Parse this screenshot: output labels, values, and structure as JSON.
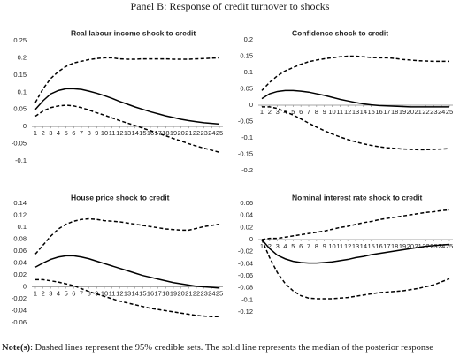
{
  "header": {
    "title": "Panel B: Response of credit turnover to shocks"
  },
  "note": {
    "label": "Note(s)",
    "text": ": Dashed lines represent the 95% credible sets. The solid line represents the median of the posterior response"
  },
  "chart_data": [
    {
      "type": "line",
      "title": "Real labour income shock to credit",
      "x": [
        1,
        2,
        3,
        4,
        5,
        6,
        7,
        8,
        9,
        10,
        11,
        12,
        13,
        14,
        15,
        16,
        17,
        18,
        19,
        20,
        21,
        22,
        23,
        24,
        25
      ],
      "xlim": [
        1,
        25
      ],
      "xticks": [
        1,
        2,
        3,
        4,
        5,
        6,
        7,
        8,
        9,
        10,
        11,
        12,
        13,
        14,
        15,
        16,
        17,
        18,
        19,
        20,
        21,
        22,
        23,
        24,
        25
      ],
      "ylim": [
        -0.1,
        0.25
      ],
      "yticks": [
        -0.1,
        -0.05,
        0,
        0.05,
        0.1,
        0.15,
        0.2,
        0.25
      ],
      "grid": false,
      "series": [
        {
          "color": "#000000",
          "dashed": true,
          "values": [
            0.07,
            0.11,
            0.14,
            0.16,
            0.175,
            0.185,
            0.19,
            0.195,
            0.198,
            0.2,
            0.2,
            0.197,
            0.196,
            0.196,
            0.197,
            0.197,
            0.197,
            0.197,
            0.196,
            0.196,
            0.196,
            0.197,
            0.198,
            0.199,
            0.2
          ]
        },
        {
          "color": "#000000",
          "dashed": false,
          "values": [
            0.05,
            0.075,
            0.095,
            0.105,
            0.11,
            0.11,
            0.108,
            0.103,
            0.097,
            0.09,
            0.082,
            0.073,
            0.065,
            0.057,
            0.05,
            0.043,
            0.037,
            0.031,
            0.026,
            0.021,
            0.017,
            0.014,
            0.011,
            0.009,
            0.007
          ]
        },
        {
          "color": "#000000",
          "dashed": true,
          "values": [
            0.03,
            0.045,
            0.055,
            0.06,
            0.062,
            0.06,
            0.055,
            0.048,
            0.04,
            0.033,
            0.025,
            0.017,
            0.01,
            0.003,
            -0.005,
            -0.012,
            -0.02,
            -0.027,
            -0.035,
            -0.042,
            -0.05,
            -0.057,
            -0.063,
            -0.069,
            -0.075
          ]
        }
      ]
    },
    {
      "type": "line",
      "title": "Confidence shock to credit",
      "x": [
        1,
        2,
        3,
        4,
        5,
        6,
        7,
        8,
        9,
        10,
        11,
        12,
        13,
        14,
        15,
        16,
        17,
        18,
        19,
        20,
        21,
        22,
        23,
        24,
        25
      ],
      "xlim": [
        1,
        25
      ],
      "xticks": [
        1,
        2,
        3,
        4,
        5,
        6,
        7,
        8,
        9,
        10,
        11,
        12,
        13,
        14,
        15,
        16,
        17,
        18,
        19,
        20,
        21,
        22,
        23,
        24,
        25
      ],
      "ylim": [
        -0.2,
        0.2
      ],
      "yticks": [
        -0.2,
        -0.15,
        -0.1,
        -0.05,
        0,
        0.05,
        0.1,
        0.15,
        0.2
      ],
      "grid": false,
      "series": [
        {
          "color": "#000000",
          "dashed": true,
          "values": [
            0.045,
            0.07,
            0.09,
            0.105,
            0.115,
            0.125,
            0.133,
            0.138,
            0.142,
            0.145,
            0.148,
            0.15,
            0.15,
            0.148,
            0.146,
            0.145,
            0.145,
            0.143,
            0.14,
            0.138,
            0.136,
            0.135,
            0.134,
            0.134,
            0.134
          ]
        },
        {
          "color": "#000000",
          "dashed": false,
          "values": [
            0.02,
            0.035,
            0.042,
            0.045,
            0.045,
            0.043,
            0.04,
            0.035,
            0.03,
            0.024,
            0.018,
            0.013,
            0.008,
            0.004,
            0.001,
            -0.001,
            -0.002,
            -0.003,
            -0.004,
            -0.005,
            -0.005,
            -0.005,
            -0.005,
            -0.005,
            -0.005
          ]
        },
        {
          "color": "#000000",
          "dashed": true,
          "values": [
            -0.005,
            -0.005,
            -0.01,
            -0.02,
            -0.03,
            -0.042,
            -0.055,
            -0.067,
            -0.078,
            -0.088,
            -0.097,
            -0.105,
            -0.112,
            -0.118,
            -0.123,
            -0.127,
            -0.13,
            -0.132,
            -0.134,
            -0.135,
            -0.136,
            -0.136,
            -0.135,
            -0.134,
            -0.133
          ]
        }
      ]
    },
    {
      "type": "line",
      "title": "House price shock to credit",
      "x": [
        1,
        2,
        3,
        4,
        5,
        6,
        7,
        8,
        9,
        10,
        11,
        12,
        13,
        14,
        15,
        16,
        17,
        18,
        19,
        20,
        21,
        22,
        23,
        24,
        25
      ],
      "xlim": [
        1,
        25
      ],
      "xticks": [
        1,
        2,
        3,
        4,
        5,
        6,
        7,
        8,
        9,
        10,
        11,
        12,
        13,
        14,
        15,
        16,
        17,
        18,
        19,
        20,
        21,
        22,
        23,
        24,
        25
      ],
      "ylim": [
        -0.06,
        0.14
      ],
      "yticks": [
        -0.06,
        -0.04,
        -0.02,
        0,
        0.02,
        0.04,
        0.06,
        0.08,
        0.1,
        0.12,
        0.14
      ],
      "grid": false,
      "series": [
        {
          "color": "#000000",
          "dashed": true,
          "values": [
            0.055,
            0.07,
            0.085,
            0.097,
            0.105,
            0.11,
            0.113,
            0.114,
            0.113,
            0.111,
            0.11,
            0.109,
            0.107,
            0.105,
            0.103,
            0.101,
            0.099,
            0.097,
            0.096,
            0.095,
            0.095,
            0.098,
            0.101,
            0.103,
            0.105
          ]
        },
        {
          "color": "#000000",
          "dashed": false,
          "values": [
            0.033,
            0.04,
            0.046,
            0.05,
            0.052,
            0.052,
            0.05,
            0.047,
            0.043,
            0.039,
            0.035,
            0.031,
            0.027,
            0.023,
            0.019,
            0.016,
            0.013,
            0.01,
            0.007,
            0.005,
            0.003,
            0.001,
            0,
            -0.001,
            -0.002
          ]
        },
        {
          "color": "#000000",
          "dashed": true,
          "values": [
            0.012,
            0.012,
            0.01,
            0.008,
            0.005,
            0.002,
            -0.003,
            -0.008,
            -0.012,
            -0.016,
            -0.02,
            -0.024,
            -0.027,
            -0.03,
            -0.033,
            -0.036,
            -0.038,
            -0.04,
            -0.042,
            -0.044,
            -0.046,
            -0.048,
            -0.049,
            -0.05,
            -0.05
          ]
        }
      ]
    },
    {
      "type": "line",
      "title": "Nominal interest rate shock to credit",
      "x": [
        1,
        2,
        3,
        4,
        5,
        6,
        7,
        8,
        9,
        10,
        11,
        12,
        13,
        14,
        15,
        16,
        17,
        18,
        19,
        20,
        21,
        22,
        23,
        24,
        25
      ],
      "xlim": [
        1,
        25
      ],
      "xticks": [
        1,
        2,
        3,
        4,
        5,
        6,
        7,
        8,
        9,
        10,
        11,
        12,
        13,
        14,
        15,
        16,
        17,
        18,
        19,
        20,
        21,
        22,
        23,
        24,
        25
      ],
      "ylim": [
        -0.12,
        0.06
      ],
      "yticks": [
        -0.12,
        -0.1,
        -0.08,
        -0.06,
        -0.04,
        -0.02,
        0,
        0.02,
        0.04,
        0.06
      ],
      "grid": false,
      "series": [
        {
          "color": "#000000",
          "dashed": true,
          "values": [
            0,
            0.002,
            0.002,
            0.004,
            0.006,
            0.008,
            0.01,
            0.012,
            0.014,
            0.017,
            0.02,
            0.022,
            0.025,
            0.028,
            0.03,
            0.033,
            0.035,
            0.037,
            0.039,
            0.041,
            0.043,
            0.045,
            0.046,
            0.048,
            0.049
          ]
        },
        {
          "color": "#000000",
          "dashed": false,
          "values": [
            0,
            -0.015,
            -0.026,
            -0.032,
            -0.036,
            -0.038,
            -0.039,
            -0.039,
            -0.038,
            -0.037,
            -0.035,
            -0.033,
            -0.03,
            -0.028,
            -0.025,
            -0.023,
            -0.021,
            -0.019,
            -0.017,
            -0.015,
            -0.013,
            -0.011,
            -0.01,
            -0.009,
            -0.008
          ]
        },
        {
          "color": "#000000",
          "dashed": true,
          "values": [
            0,
            -0.03,
            -0.055,
            -0.073,
            -0.085,
            -0.093,
            -0.097,
            -0.098,
            -0.098,
            -0.098,
            -0.097,
            -0.096,
            -0.094,
            -0.092,
            -0.09,
            -0.088,
            -0.087,
            -0.086,
            -0.085,
            -0.083,
            -0.081,
            -0.078,
            -0.075,
            -0.07,
            -0.065
          ]
        }
      ]
    }
  ]
}
